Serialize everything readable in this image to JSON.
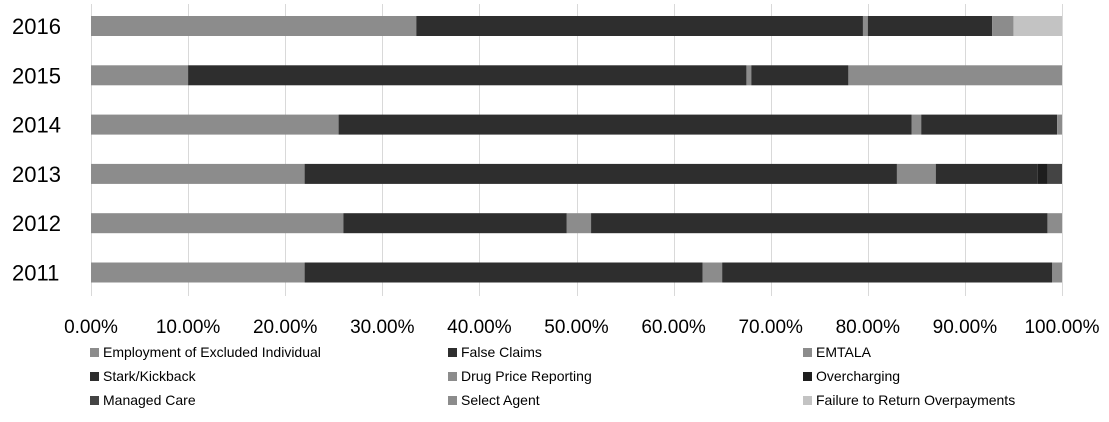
{
  "chart_data": {
    "type": "bar",
    "orientation": "horizontal",
    "stacked": true,
    "normalized": true,
    "title": "",
    "xlabel": "",
    "ylabel": "",
    "xlim": [
      0,
      1
    ],
    "grid": true,
    "legend_position": "bottom",
    "x_ticks": [
      "0.00%",
      "10.00%",
      "20.00%",
      "30.00%",
      "40.00%",
      "50.00%",
      "60.00%",
      "70.00%",
      "80.00%",
      "90.00%",
      "100.00%"
    ],
    "categories": [
      "2016",
      "2015",
      "2014",
      "2013",
      "2012",
      "2011"
    ],
    "series": [
      {
        "name": "Employment of Excluded Individual",
        "color": "#8c8c8c",
        "values": [
          0.335,
          0.1,
          0.255,
          0.22,
          0.26,
          0.22
        ]
      },
      {
        "name": "False Claims",
        "color": "#2e2e2e",
        "values": [
          0.46,
          0.575,
          0.59,
          0.61,
          0.23,
          0.41
        ]
      },
      {
        "name": "EMTALA",
        "color": "#8c8c8c",
        "values": [
          0.005,
          0.005,
          0.01,
          0.04,
          0.025,
          0.02
        ]
      },
      {
        "name": "Stark/Kickback",
        "color": "#2e2e2e",
        "values": [
          0.128,
          0.1,
          0.14,
          0.105,
          0.47,
          0.34
        ]
      },
      {
        "name": "Drug Price Reporting",
        "color": "#8c8c8c",
        "values": [
          0.022,
          0.22,
          0.005,
          0.0,
          0.015,
          0.01
        ]
      },
      {
        "name": "Overcharging",
        "color": "#1e1e1e",
        "values": [
          0.0,
          0.0,
          0.0,
          0.01,
          0.0,
          0.0
        ]
      },
      {
        "name": "Managed Care",
        "color": "#444444",
        "values": [
          0.0,
          0.0,
          0.0,
          0.015,
          0.0,
          0.0
        ]
      },
      {
        "name": "Select Agent",
        "color": "#8c8c8c",
        "values": [
          0.0,
          0.0,
          0.0,
          0.0,
          0.0,
          0.0
        ]
      },
      {
        "name": "Failure to Return Overpayments",
        "color": "#c3c3c3",
        "values": [
          0.05,
          0.0,
          0.0,
          0.0,
          0.0,
          0.0
        ]
      }
    ]
  }
}
